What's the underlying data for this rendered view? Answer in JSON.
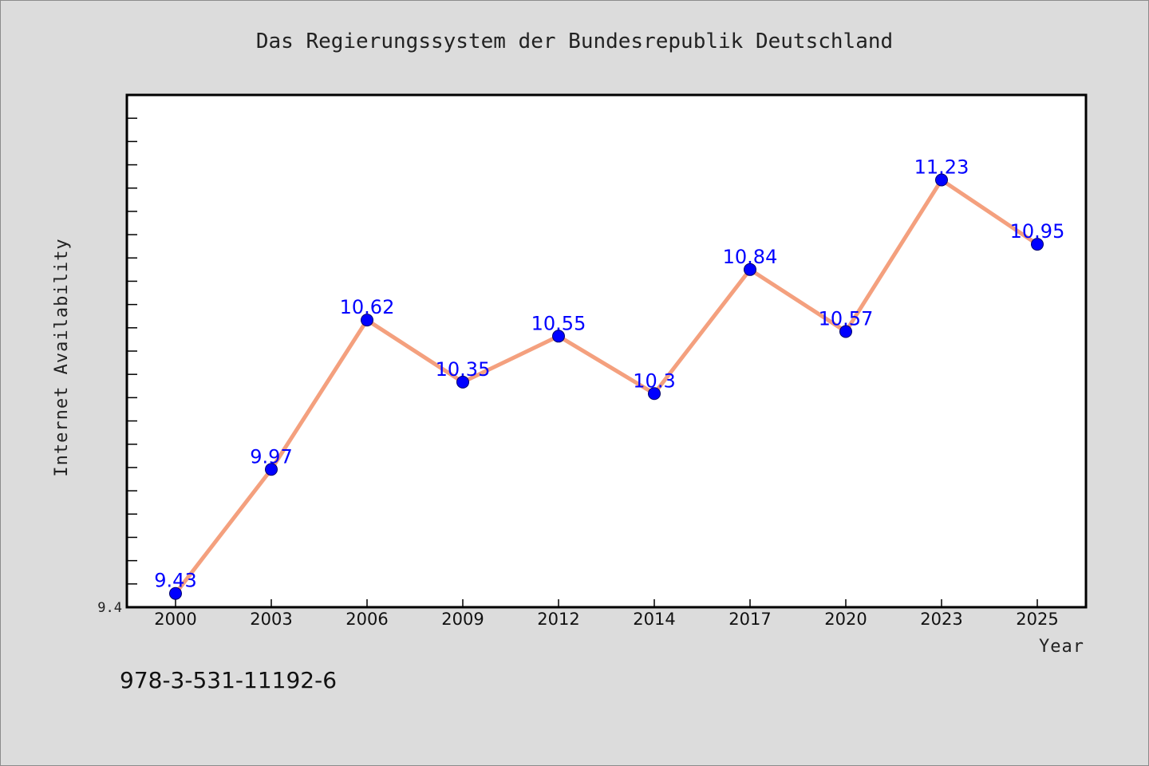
{
  "chart_data": {
    "type": "line",
    "title": "Das Regierungssystem der Bundesrepublik Deutschland",
    "xlabel": "Year",
    "ylabel": "Internet Availability",
    "categories": [
      "2000",
      "2003",
      "2006",
      "2009",
      "2012",
      "2014",
      "2017",
      "2020",
      "2023",
      "2025"
    ],
    "series": [
      {
        "values": [
          9.43,
          9.97,
          10.62,
          10.35,
          10.55,
          10.3,
          10.84,
          10.57,
          11.23,
          10.95
        ],
        "labels": [
          "9.43",
          "9.97",
          "10.62",
          "10.35",
          "10.55",
          "10.3",
          "10.84",
          "10.57",
          "11.23",
          "10.95"
        ],
        "line_color": "#f4a07e",
        "marker_color": "#0000ff"
      }
    ],
    "y_min_label": "9.4",
    "ylim": [
      9.37,
      11.6
    ],
    "grid": false,
    "legend": "none"
  },
  "footer": {
    "isbn": "978-3-531-11192-6"
  }
}
